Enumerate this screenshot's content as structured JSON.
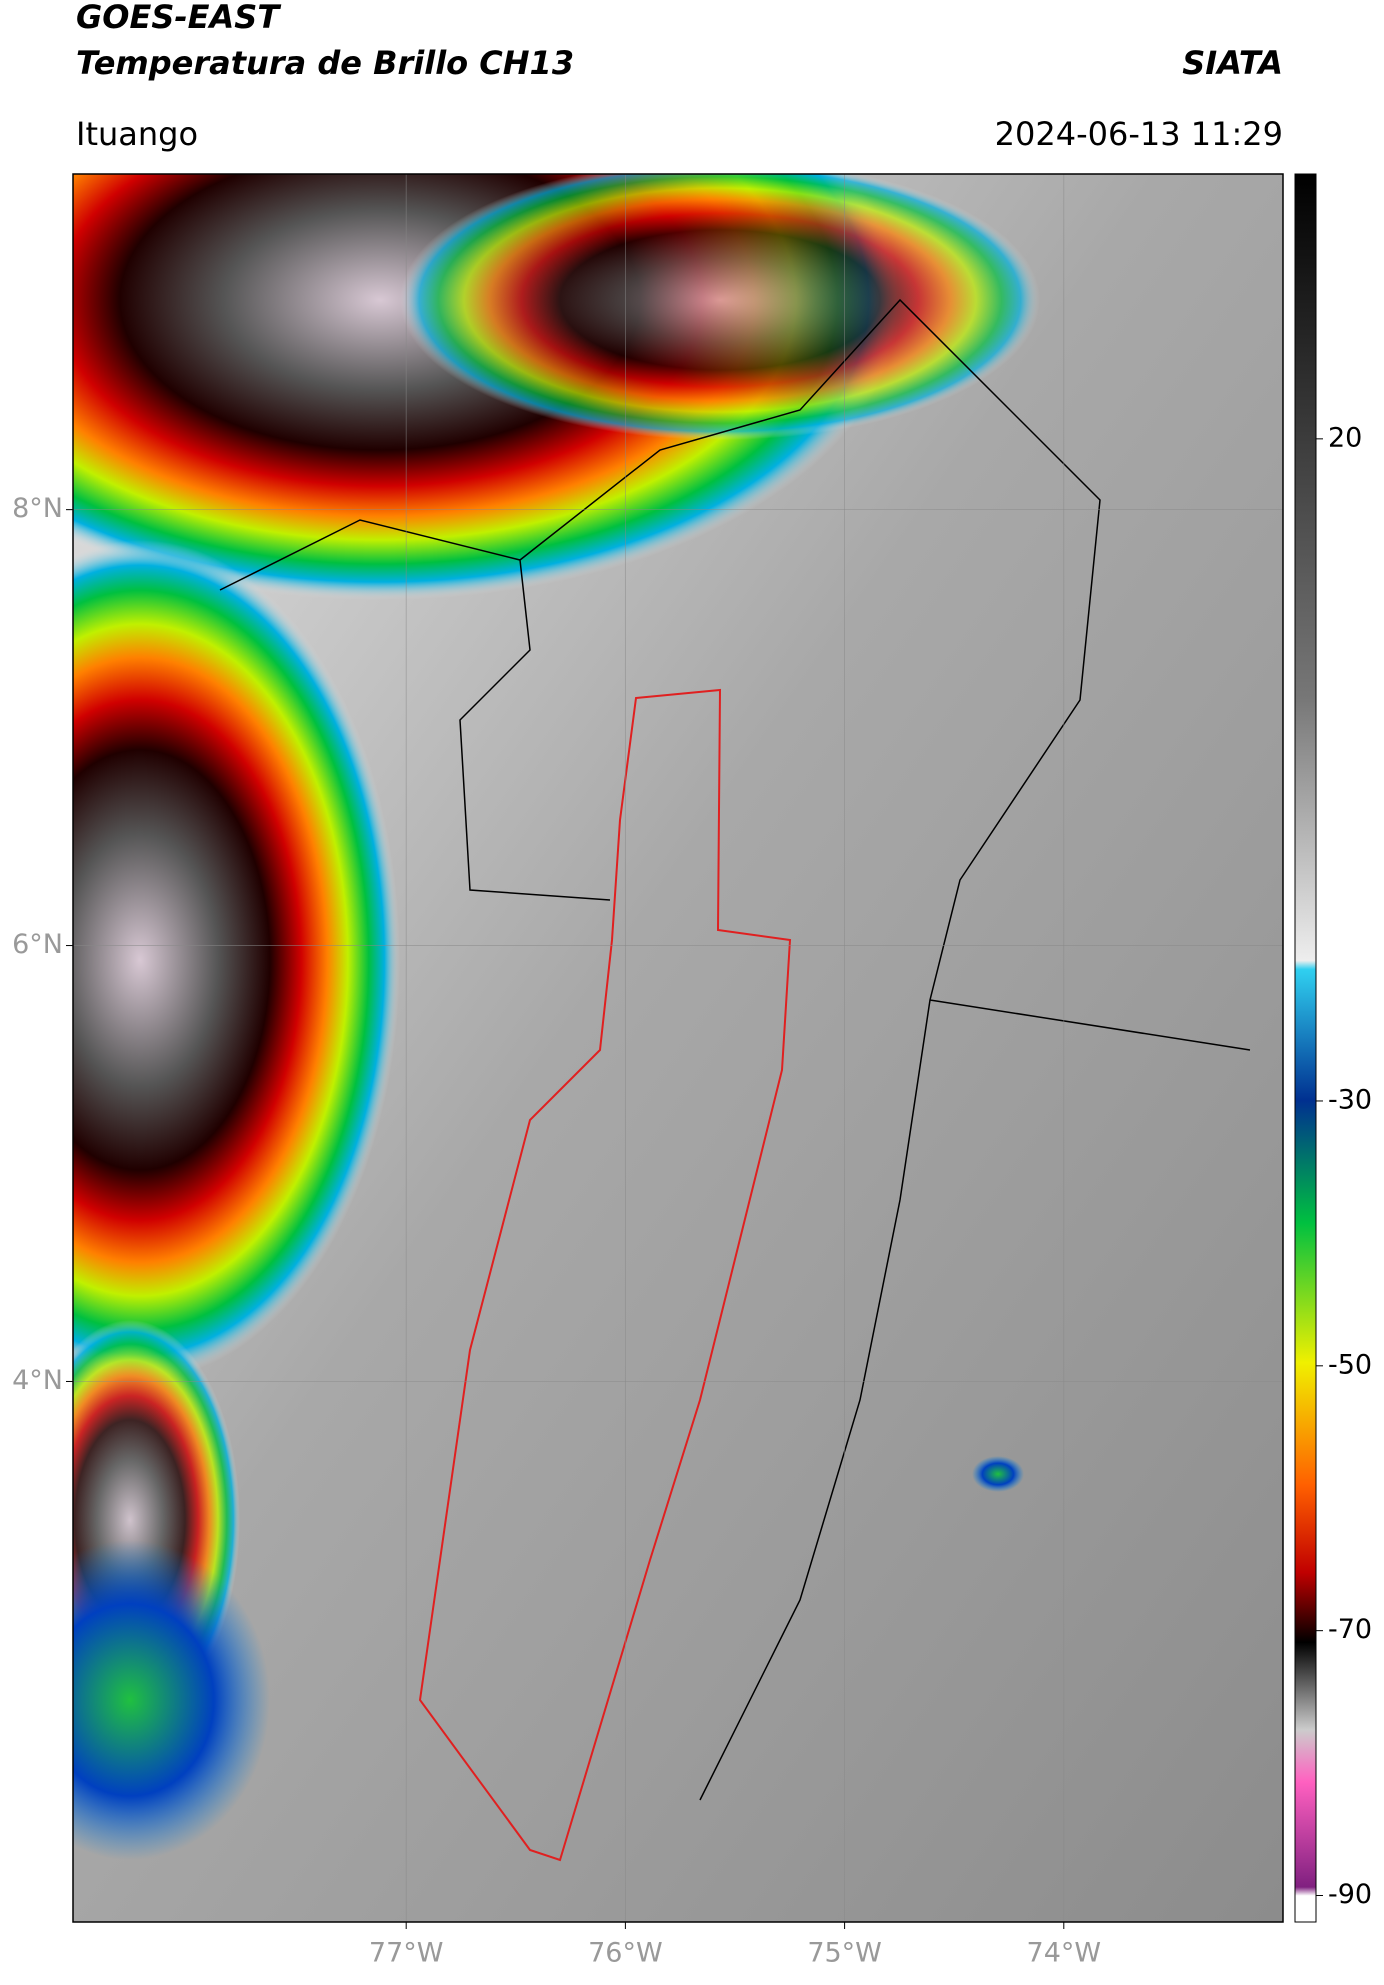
{
  "header": {
    "title": "GOES-EAST",
    "subtitle": "Temperatura de Brillo CH13",
    "brand": "SIATA",
    "location": "Ituango",
    "datetime": "2024-06-13 11:29"
  },
  "map": {
    "xlim": [
      -78.52,
      -73.0
    ],
    "ylim": [
      1.52,
      9.54
    ],
    "xticks": [
      {
        "value": -77,
        "label": "77°W"
      },
      {
        "value": -76,
        "label": "76°W"
      },
      {
        "value": -75,
        "label": "75°W"
      },
      {
        "value": -74,
        "label": "74°W"
      }
    ],
    "yticks": [
      {
        "value": 8,
        "label": "8°N"
      },
      {
        "value": 6,
        "label": "6°N"
      },
      {
        "value": 4,
        "label": "4°N"
      }
    ],
    "grid": true
  },
  "colorbar": {
    "lim": [
      -92,
      40
    ],
    "ticks": [
      20,
      -30,
      -50,
      -70,
      -90
    ]
  }
}
